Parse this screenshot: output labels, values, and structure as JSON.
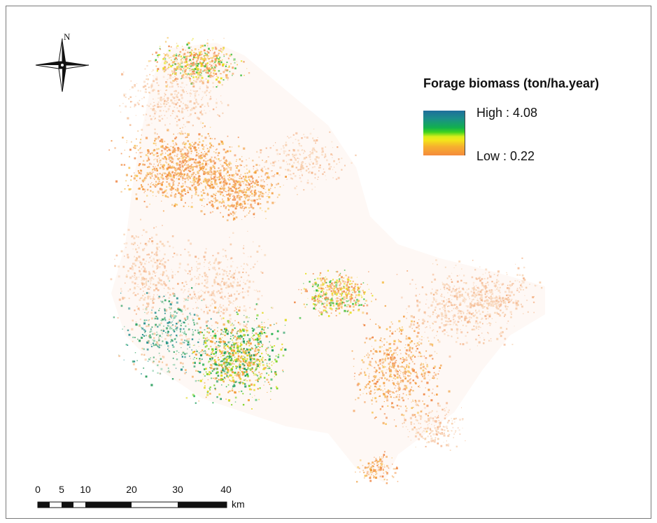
{
  "compass": {
    "north_label": "N"
  },
  "legend": {
    "title": "Forage biomass (ton/ha.year)",
    "high_label": "High : 4.08",
    "low_label": "Low : 0.22",
    "high_value": 4.08,
    "low_value": 0.22,
    "ramp_colors": [
      "#1f6e9c",
      "#12b04e",
      "#d9ee1a",
      "#f58a3c"
    ]
  },
  "scale_bar": {
    "tick_labels": [
      "0",
      "5",
      "10",
      "20",
      "30",
      "40"
    ],
    "unit": "km"
  }
}
